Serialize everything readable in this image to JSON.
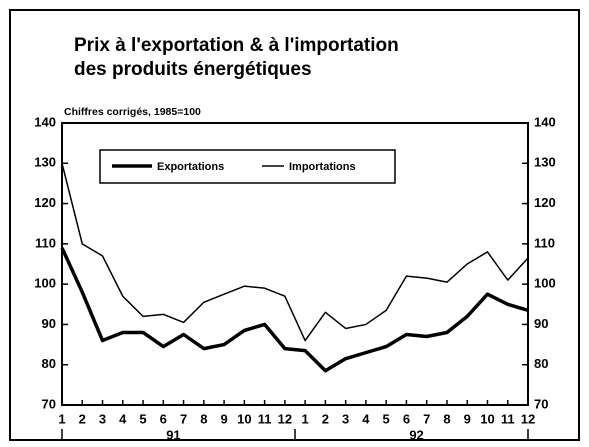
{
  "chart_data": {
    "type": "line",
    "title": [
      "Prix à l'exportation & à l'importation",
      "des produits énergétiques"
    ],
    "subtitle": "Chiffres corrigés, 1985=100",
    "categories": [
      "1",
      "2",
      "3",
      "4",
      "5",
      "6",
      "7",
      "8",
      "9",
      "10",
      "11",
      "12",
      "1",
      "2",
      "3",
      "4",
      "5",
      "6",
      "7",
      "8",
      "9",
      "10",
      "11",
      "12"
    ],
    "x_groups": [
      "91",
      "92"
    ],
    "series": [
      {
        "name": "Exportations",
        "color": "#000000",
        "values": [
          109,
          98,
          86,
          88,
          88,
          84.5,
          87.5,
          84,
          85,
          88.5,
          90,
          84,
          83.5,
          78.5,
          81.5,
          83,
          84.5,
          87.5,
          87,
          88,
          92,
          97.5,
          95,
          93.5
        ]
      },
      {
        "name": "Importations",
        "color": "#000000",
        "values": [
          130,
          110,
          107,
          97,
          92,
          92.5,
          90.5,
          95.5,
          97.5,
          99.5,
          99,
          97,
          86,
          93,
          89,
          90,
          93.5,
          102,
          101.5,
          100.5,
          105,
          108,
          101,
          106.5
        ]
      }
    ],
    "ylim": [
      70,
      140
    ],
    "yticks": [
      70,
      80,
      90,
      100,
      110,
      120,
      130,
      140
    ],
    "grid": false
  }
}
